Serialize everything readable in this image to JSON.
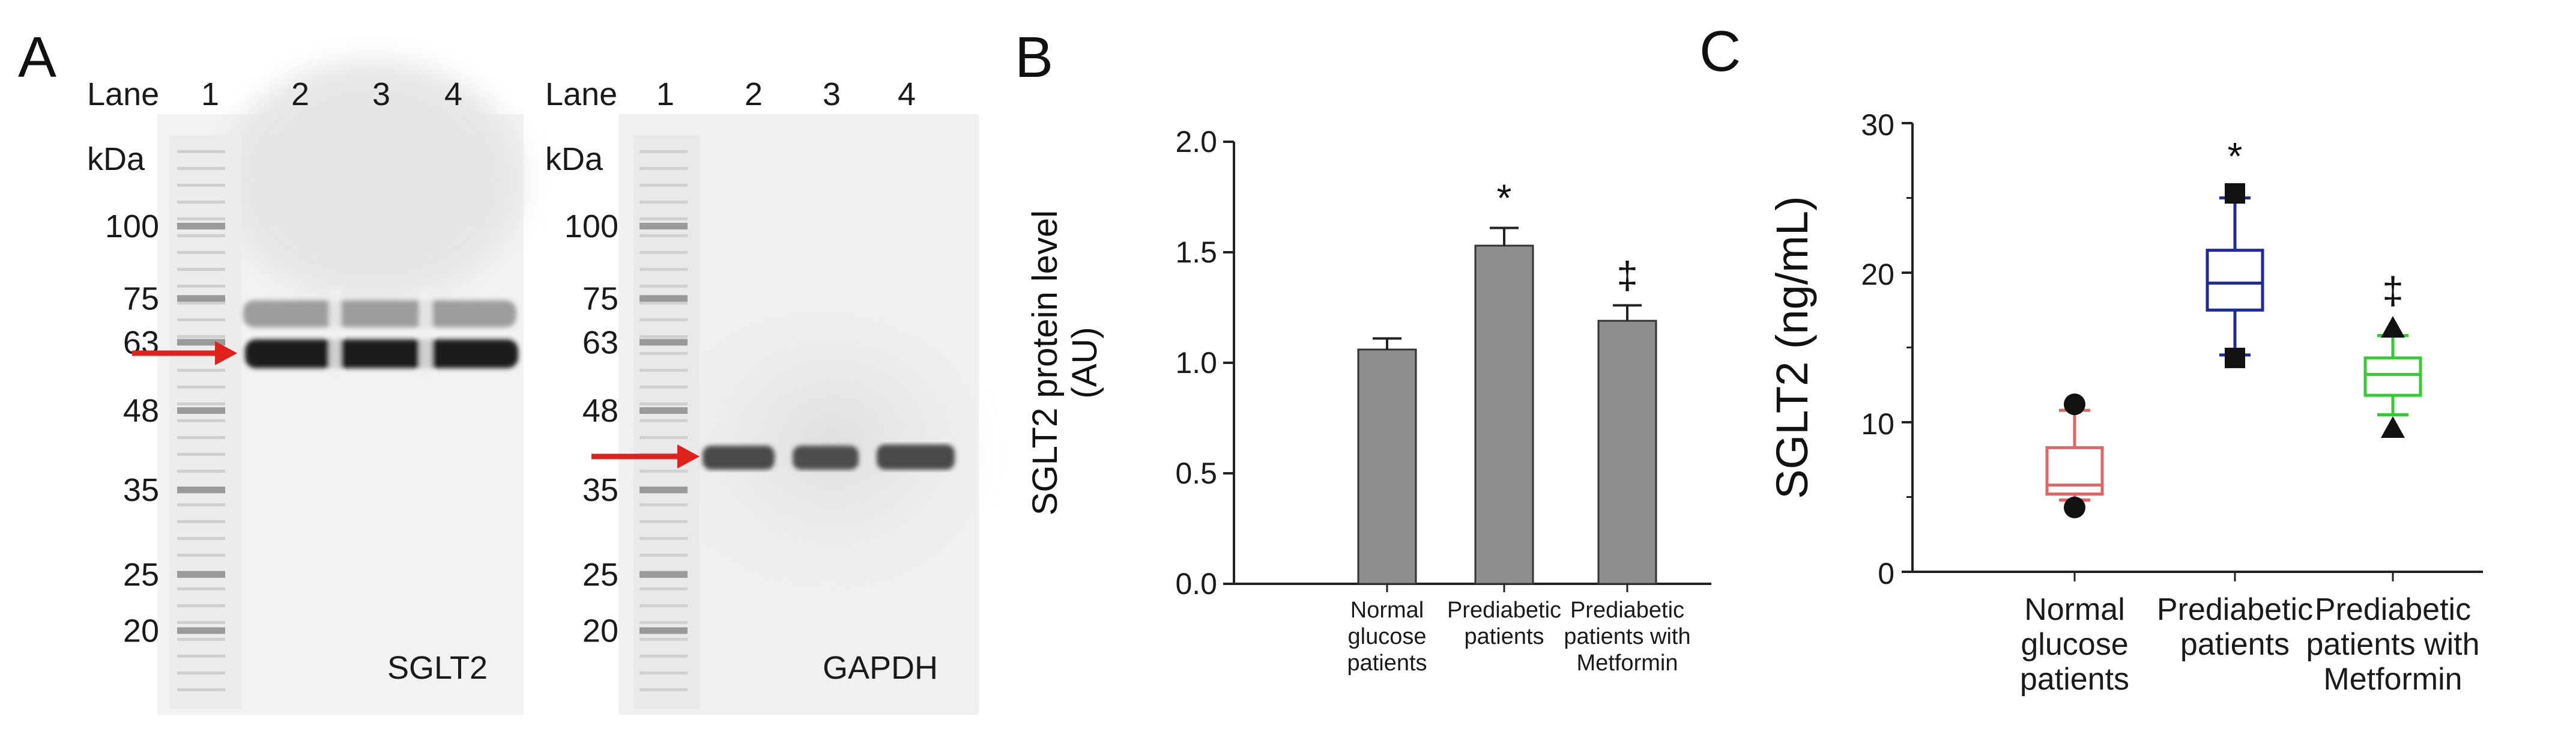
{
  "panel_a": {
    "letter": "A",
    "lane_header": "Lane",
    "lane_numbers": [
      "1",
      "2",
      "3",
      "4"
    ],
    "kda_header": "kDa",
    "marker_labels": [
      "100",
      "75",
      "63",
      "48",
      "35",
      "25",
      "20"
    ],
    "marker_values_kda": [
      100,
      75,
      63,
      48,
      35,
      25,
      20
    ],
    "blots": [
      {
        "protein": "SGLT2",
        "band_kda": 55
      },
      {
        "protein": "GAPDH",
        "band_kda": 37
      }
    ],
    "arrow_color": "#e0201a"
  },
  "panels": {
    "b": {
      "letter": "B"
    },
    "c": {
      "letter": "C"
    }
  },
  "chart_data": [
    {
      "type": "bar",
      "panel": "B",
      "categories": [
        [
          "Normal",
          "glucose",
          "patients"
        ],
        [
          "Prediabetic",
          "patients"
        ],
        [
          "Prediabetic",
          "patients with",
          "Metformin"
        ]
      ],
      "values": [
        1.06,
        1.53,
        1.19
      ],
      "errors": [
        0.05,
        0.08,
        0.07
      ],
      "significance": [
        "",
        "*",
        "‡"
      ],
      "ylabel_lines": [
        "SGLT2 protein level",
        "(AU)"
      ],
      "yticks": [
        "0.0",
        "0.5",
        "1.0",
        "1.5",
        "2.0"
      ],
      "ylim": [
        0,
        2.0
      ],
      "bar_color": "#8e8e8e"
    },
    {
      "type": "box",
      "panel": "C",
      "categories": [
        [
          "Normal",
          "glucose",
          "patients"
        ],
        [
          "Prediabetic",
          "patients"
        ],
        [
          "Prediabetic",
          "patients with",
          "Metformin"
        ]
      ],
      "boxes": [
        {
          "whisker_low": 4.8,
          "q1": 5.2,
          "median": 5.8,
          "q3": 8.3,
          "whisker_high": 10.8,
          "outliers": [
            4.3,
            11.2
          ],
          "outlier_shape": "circle",
          "color": "#e06666"
        },
        {
          "whisker_low": 14.5,
          "q1": 17.5,
          "median": 19.3,
          "q3": 21.5,
          "whisker_high": 25.0,
          "outliers": [
            14.3,
            25.3
          ],
          "outlier_shape": "square",
          "color": "#1f2a9a"
        },
        {
          "whisker_low": 10.5,
          "q1": 11.8,
          "median": 13.2,
          "q3": 14.3,
          "whisker_high": 15.8,
          "outliers": [
            9.6,
            16.3
          ],
          "outlier_shape": "triangle",
          "color": "#33cc33"
        }
      ],
      "significance": [
        "",
        "*",
        "‡"
      ],
      "ylabel": "SGLT2 (ng/mL)",
      "yticks": [
        "0",
        "10",
        "20",
        "30"
      ],
      "ylim": [
        0,
        30
      ]
    }
  ]
}
